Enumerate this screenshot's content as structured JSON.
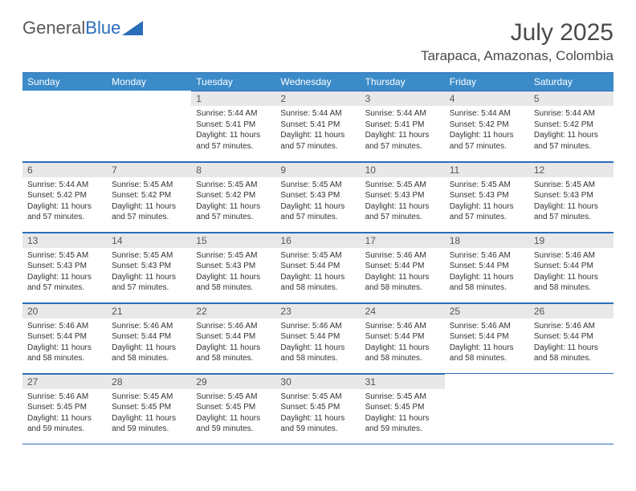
{
  "logo": {
    "text1": "General",
    "text2": "Blue"
  },
  "title": "July 2025",
  "location": "Tarapaca, Amazonas, Colombia",
  "colors": {
    "header_bg": "#3b8bc9",
    "header_text": "#ffffff",
    "border": "#2a6db8",
    "daynum_bg": "#e8e8e8",
    "text": "#333333",
    "logo_gray": "#5a5a5a",
    "logo_blue": "#2a6db8"
  },
  "weekdays": [
    "Sunday",
    "Monday",
    "Tuesday",
    "Wednesday",
    "Thursday",
    "Friday",
    "Saturday"
  ],
  "first_day_index": 2,
  "days": [
    {
      "n": 1,
      "sr": "5:44 AM",
      "ss": "5:41 PM",
      "dl": "11 hours and 57 minutes."
    },
    {
      "n": 2,
      "sr": "5:44 AM",
      "ss": "5:41 PM",
      "dl": "11 hours and 57 minutes."
    },
    {
      "n": 3,
      "sr": "5:44 AM",
      "ss": "5:41 PM",
      "dl": "11 hours and 57 minutes."
    },
    {
      "n": 4,
      "sr": "5:44 AM",
      "ss": "5:42 PM",
      "dl": "11 hours and 57 minutes."
    },
    {
      "n": 5,
      "sr": "5:44 AM",
      "ss": "5:42 PM",
      "dl": "11 hours and 57 minutes."
    },
    {
      "n": 6,
      "sr": "5:44 AM",
      "ss": "5:42 PM",
      "dl": "11 hours and 57 minutes."
    },
    {
      "n": 7,
      "sr": "5:45 AM",
      "ss": "5:42 PM",
      "dl": "11 hours and 57 minutes."
    },
    {
      "n": 8,
      "sr": "5:45 AM",
      "ss": "5:42 PM",
      "dl": "11 hours and 57 minutes."
    },
    {
      "n": 9,
      "sr": "5:45 AM",
      "ss": "5:43 PM",
      "dl": "11 hours and 57 minutes."
    },
    {
      "n": 10,
      "sr": "5:45 AM",
      "ss": "5:43 PM",
      "dl": "11 hours and 57 minutes."
    },
    {
      "n": 11,
      "sr": "5:45 AM",
      "ss": "5:43 PM",
      "dl": "11 hours and 57 minutes."
    },
    {
      "n": 12,
      "sr": "5:45 AM",
      "ss": "5:43 PM",
      "dl": "11 hours and 57 minutes."
    },
    {
      "n": 13,
      "sr": "5:45 AM",
      "ss": "5:43 PM",
      "dl": "11 hours and 57 minutes."
    },
    {
      "n": 14,
      "sr": "5:45 AM",
      "ss": "5:43 PM",
      "dl": "11 hours and 57 minutes."
    },
    {
      "n": 15,
      "sr": "5:45 AM",
      "ss": "5:43 PM",
      "dl": "11 hours and 58 minutes."
    },
    {
      "n": 16,
      "sr": "5:45 AM",
      "ss": "5:44 PM",
      "dl": "11 hours and 58 minutes."
    },
    {
      "n": 17,
      "sr": "5:46 AM",
      "ss": "5:44 PM",
      "dl": "11 hours and 58 minutes."
    },
    {
      "n": 18,
      "sr": "5:46 AM",
      "ss": "5:44 PM",
      "dl": "11 hours and 58 minutes."
    },
    {
      "n": 19,
      "sr": "5:46 AM",
      "ss": "5:44 PM",
      "dl": "11 hours and 58 minutes."
    },
    {
      "n": 20,
      "sr": "5:46 AM",
      "ss": "5:44 PM",
      "dl": "11 hours and 58 minutes."
    },
    {
      "n": 21,
      "sr": "5:46 AM",
      "ss": "5:44 PM",
      "dl": "11 hours and 58 minutes."
    },
    {
      "n": 22,
      "sr": "5:46 AM",
      "ss": "5:44 PM",
      "dl": "11 hours and 58 minutes."
    },
    {
      "n": 23,
      "sr": "5:46 AM",
      "ss": "5:44 PM",
      "dl": "11 hours and 58 minutes."
    },
    {
      "n": 24,
      "sr": "5:46 AM",
      "ss": "5:44 PM",
      "dl": "11 hours and 58 minutes."
    },
    {
      "n": 25,
      "sr": "5:46 AM",
      "ss": "5:44 PM",
      "dl": "11 hours and 58 minutes."
    },
    {
      "n": 26,
      "sr": "5:46 AM",
      "ss": "5:44 PM",
      "dl": "11 hours and 58 minutes."
    },
    {
      "n": 27,
      "sr": "5:46 AM",
      "ss": "5:45 PM",
      "dl": "11 hours and 59 minutes."
    },
    {
      "n": 28,
      "sr": "5:45 AM",
      "ss": "5:45 PM",
      "dl": "11 hours and 59 minutes."
    },
    {
      "n": 29,
      "sr": "5:45 AM",
      "ss": "5:45 PM",
      "dl": "11 hours and 59 minutes."
    },
    {
      "n": 30,
      "sr": "5:45 AM",
      "ss": "5:45 PM",
      "dl": "11 hours and 59 minutes."
    },
    {
      "n": 31,
      "sr": "5:45 AM",
      "ss": "5:45 PM",
      "dl": "11 hours and 59 minutes."
    }
  ],
  "labels": {
    "sunrise": "Sunrise:",
    "sunset": "Sunset:",
    "daylight": "Daylight:"
  }
}
